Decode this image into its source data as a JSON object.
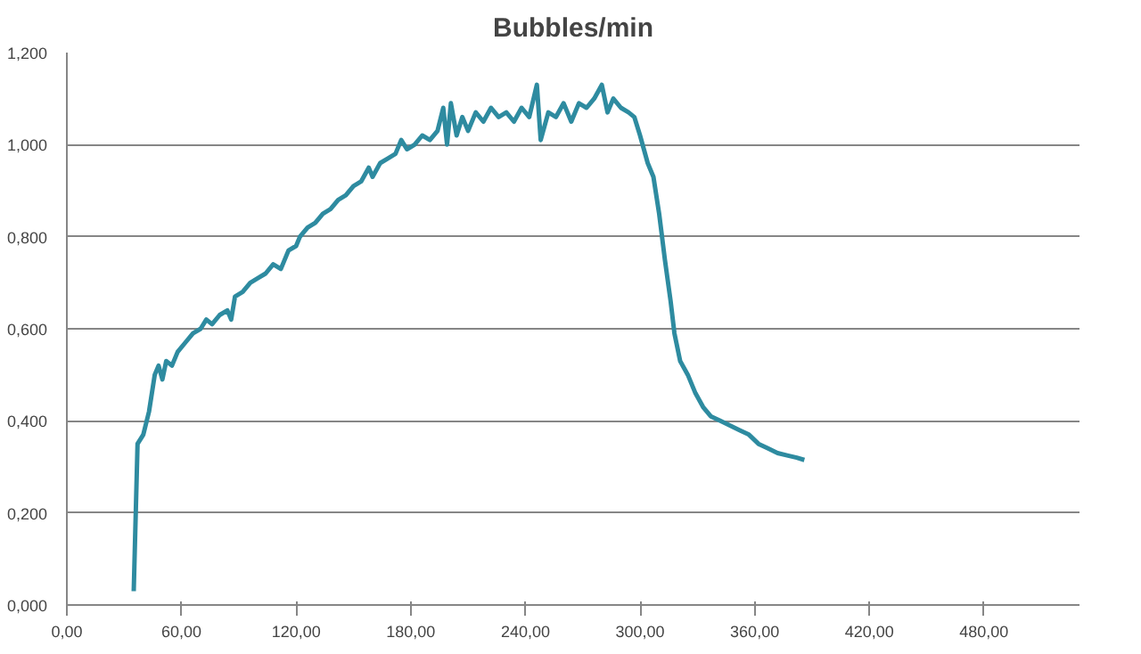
{
  "chart_data": {
    "type": "line",
    "title": "Bubbles/min",
    "x": [
      35,
      37,
      40,
      43,
      46,
      48,
      50,
      52,
      55,
      58,
      62,
      66,
      70,
      73,
      76,
      80,
      84,
      86,
      88,
      92,
      96,
      100,
      104,
      108,
      112,
      116,
      120,
      122,
      126,
      130,
      134,
      138,
      142,
      146,
      150,
      154,
      158,
      160,
      164,
      168,
      172,
      175,
      178,
      182,
      186,
      190,
      194,
      197,
      199,
      201,
      204,
      207,
      210,
      214,
      218,
      222,
      226,
      230,
      234,
      238,
      242,
      246,
      248,
      252,
      256,
      260,
      264,
      268,
      272,
      276,
      280,
      283,
      286,
      290,
      294,
      297,
      300,
      302,
      304,
      307,
      310,
      313,
      316,
      318,
      321,
      325,
      329,
      333,
      337,
      342,
      347,
      352,
      357,
      362,
      367,
      372,
      377,
      382,
      386
    ],
    "series": [
      {
        "color": "#2e8ba0",
        "values": [
          0.03,
          0.35,
          0.37,
          0.42,
          0.5,
          0.52,
          0.49,
          0.53,
          0.52,
          0.55,
          0.57,
          0.59,
          0.6,
          0.62,
          0.61,
          0.63,
          0.64,
          0.62,
          0.67,
          0.68,
          0.7,
          0.71,
          0.72,
          0.74,
          0.73,
          0.77,
          0.78,
          0.8,
          0.82,
          0.83,
          0.85,
          0.86,
          0.88,
          0.89,
          0.91,
          0.92,
          0.95,
          0.93,
          0.96,
          0.97,
          0.98,
          1.01,
          0.99,
          1.0,
          1.02,
          1.01,
          1.03,
          1.08,
          1.0,
          1.09,
          1.02,
          1.06,
          1.03,
          1.07,
          1.05,
          1.08,
          1.06,
          1.07,
          1.05,
          1.08,
          1.06,
          1.13,
          1.01,
          1.07,
          1.06,
          1.09,
          1.05,
          1.09,
          1.08,
          1.1,
          1.13,
          1.07,
          1.1,
          1.08,
          1.07,
          1.06,
          1.02,
          0.99,
          0.96,
          0.93,
          0.85,
          0.75,
          0.66,
          0.59,
          0.53,
          0.5,
          0.46,
          0.43,
          0.41,
          0.4,
          0.39,
          0.38,
          0.37,
          0.35,
          0.34,
          0.33,
          0.325,
          0.32,
          0.315
        ]
      }
    ],
    "xlim": [
      0,
      530
    ],
    "xticks": [
      {
        "value": 0,
        "label": "0,00"
      },
      {
        "value": 60,
        "label": "60,00"
      },
      {
        "value": 120,
        "label": "120,00"
      },
      {
        "value": 180,
        "label": "180,00"
      },
      {
        "value": 240,
        "label": "240,00"
      },
      {
        "value": 300,
        "label": "300,00"
      },
      {
        "value": 360,
        "label": "360,00"
      },
      {
        "value": 420,
        "label": "420,00"
      },
      {
        "value": 480,
        "label": "480,00"
      }
    ],
    "ylim": [
      0,
      1.2
    ],
    "yticks": [
      {
        "value": 0,
        "label": "0,000"
      },
      {
        "value": 0.2,
        "label": "0,200"
      },
      {
        "value": 0.4,
        "label": "0,400"
      },
      {
        "value": 0.6,
        "label": "0,600"
      },
      {
        "value": 0.8,
        "label": "0,800"
      },
      {
        "value": 1.0,
        "label": "1,000"
      },
      {
        "value": 1.2,
        "label": "1,200"
      }
    ],
    "grid": "y",
    "marker": "none",
    "line_style": "solid"
  }
}
